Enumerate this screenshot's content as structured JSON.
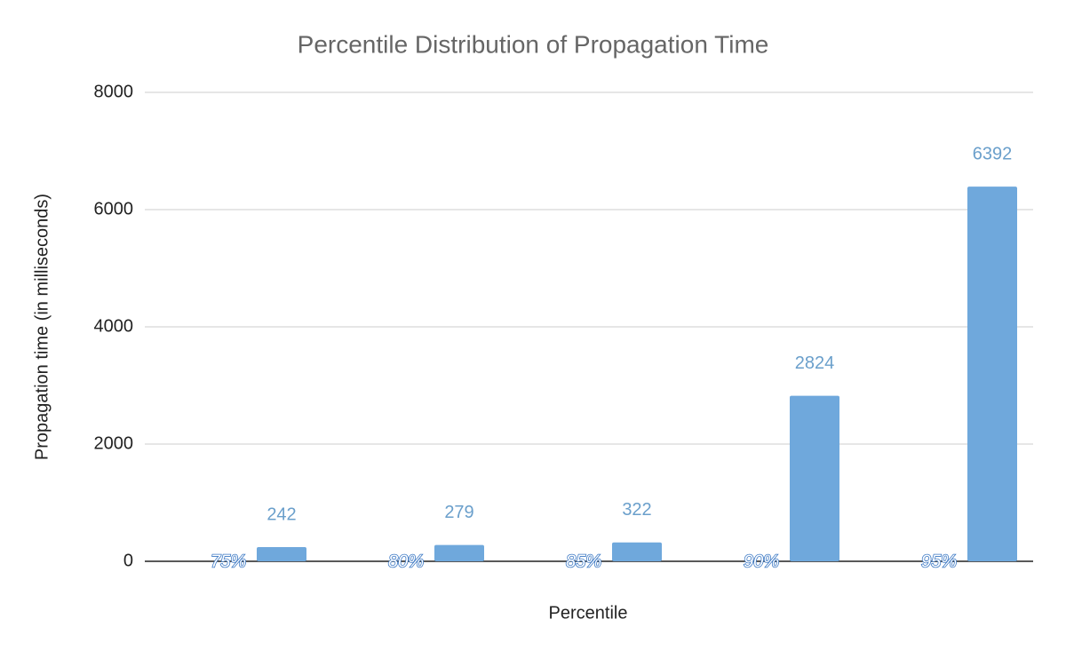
{
  "chart_data": {
    "type": "bar",
    "title": "Percentile Distribution of Propagation Time",
    "x_label": "Percentile",
    "y_label": "Propagation time (in milliseconds)",
    "categories": [
      "75%",
      "80%",
      "85%",
      "90%",
      "95%"
    ],
    "values": [
      242,
      279,
      322,
      2824,
      6392
    ],
    "color": "#6fa8dc",
    "ylim": [
      0,
      8000
    ],
    "yticks": [
      0,
      2000,
      4000,
      6000,
      8000
    ],
    "grid": true
  }
}
